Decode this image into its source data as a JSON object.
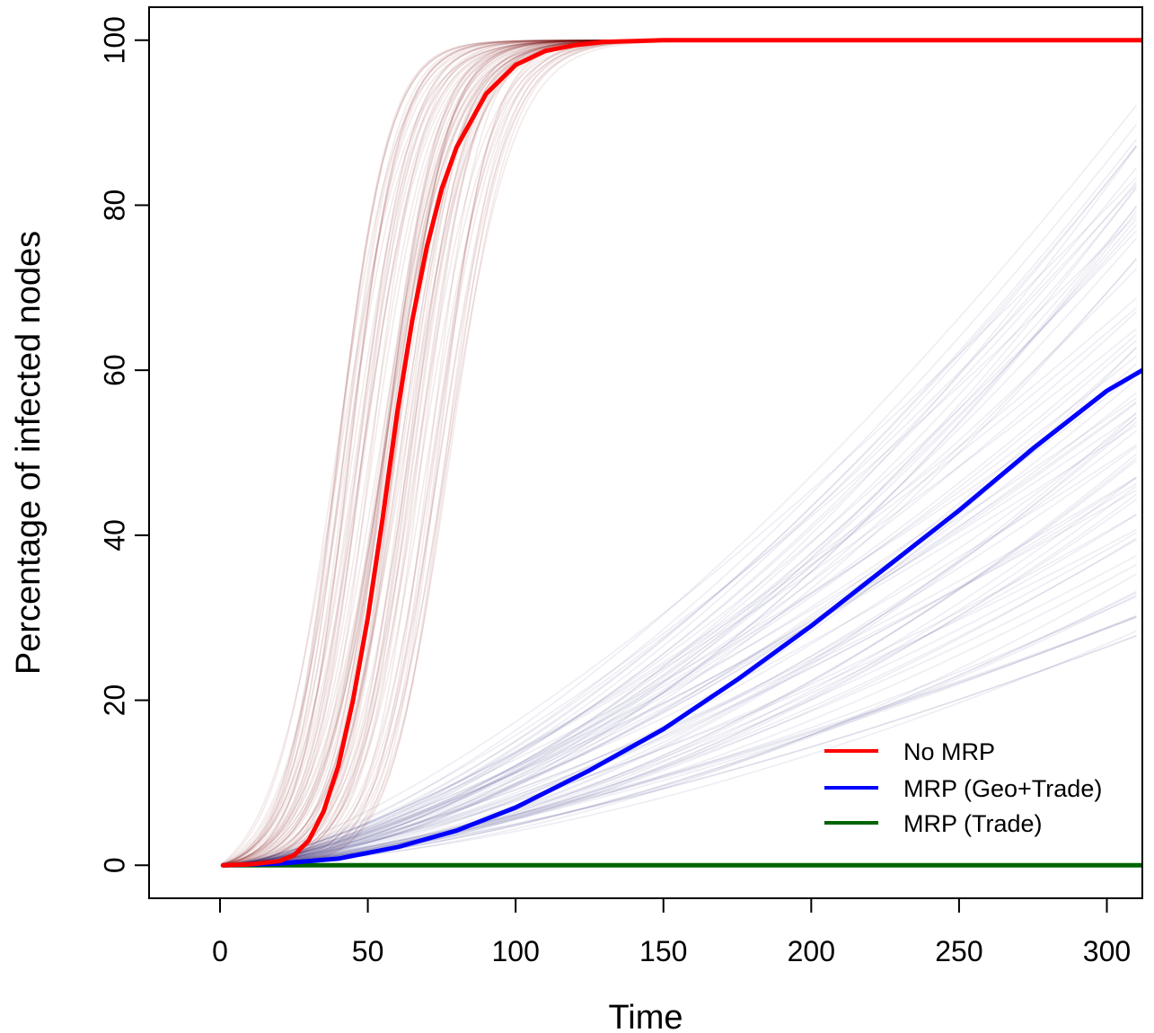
{
  "chart_data": {
    "type": "line",
    "title": "",
    "xlabel": "Time",
    "ylabel": "Percentage of infected nodes",
    "xlim": [
      -24,
      312
    ],
    "ylim": [
      -4,
      104
    ],
    "xticks": [
      0,
      50,
      100,
      150,
      200,
      250,
      300
    ],
    "yticks": [
      0,
      20,
      40,
      60,
      80,
      100
    ],
    "grid": false,
    "legend_position": "bottom-right",
    "series": [
      {
        "name": "No MRP",
        "color": "#ff0000",
        "x": [
          1,
          10,
          20,
          25,
          30,
          35,
          40,
          45,
          50,
          55,
          60,
          65,
          70,
          75,
          80,
          90,
          100,
          110,
          120,
          130,
          140,
          150,
          175,
          200,
          250,
          312
        ],
        "y": [
          0,
          0.1,
          0.5,
          1.2,
          3,
          6.5,
          12,
          20,
          30,
          42,
          55,
          66,
          75,
          82,
          87,
          93.5,
          97,
          98.7,
          99.4,
          99.8,
          99.9,
          100,
          100,
          100,
          100,
          100
        ]
      },
      {
        "name": "MRP (Geo+Trade)",
        "color": "#0000ff",
        "x": [
          1,
          20,
          40,
          60,
          80,
          100,
          125,
          150,
          175,
          200,
          225,
          250,
          275,
          300,
          312
        ],
        "y": [
          0,
          0.2,
          0.8,
          2.2,
          4.2,
          7,
          11.5,
          16.5,
          22.5,
          29,
          36,
          43,
          50.5,
          57.5,
          60
        ]
      },
      {
        "name": "MRP (Trade)",
        "color": "#006400",
        "x": [
          1,
          312
        ],
        "y": [
          0,
          0
        ]
      }
    ],
    "simulation_bands": [
      {
        "of_series": "No MRP",
        "color": "#7a1010",
        "opacity": 0.09,
        "runs": 80,
        "midpoint_range": [
          38,
          78
        ],
        "steepness_range": [
          0.085,
          0.12
        ]
      },
      {
        "of_series": "MRP (Geo+Trade)",
        "color": "#1a1f6e",
        "opacity": 0.08,
        "runs": 80,
        "final_value_range": [
          28,
          94
        ]
      }
    ]
  }
}
